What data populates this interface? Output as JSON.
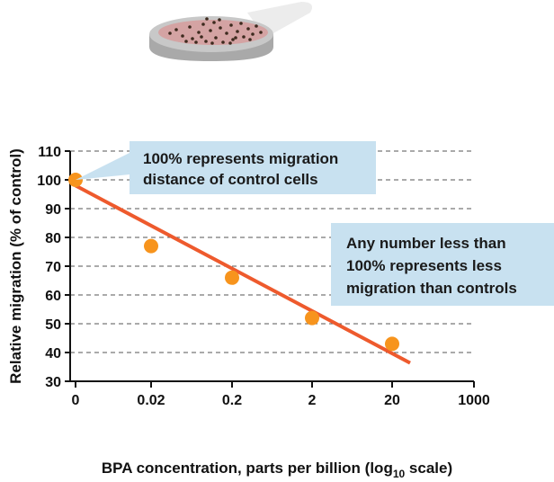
{
  "chart_data": {
    "type": "scatter",
    "x_scale": "log",
    "x_ticks": [
      "0",
      "0.02",
      "0.2",
      "2",
      "20",
      "1000"
    ],
    "y_ticks": [
      30,
      40,
      50,
      60,
      70,
      80,
      90,
      100,
      110
    ],
    "ylim": [
      30,
      110
    ],
    "grid": "dashed horizontal",
    "ylabel": "Relative migration (% of control)",
    "xlabel": "BPA concentration, parts per billion (log₁₀ scale)",
    "xlabel_parts": {
      "main": "BPA concentration, parts per billion (log",
      "subscript": "10",
      "tail": " scale)"
    },
    "points": [
      {
        "x": "0",
        "y": 100
      },
      {
        "x": "0.02",
        "y": 77
      },
      {
        "x": "0.2",
        "y": 66
      },
      {
        "x": "2",
        "y": 52
      },
      {
        "x": "20",
        "y": 43
      }
    ],
    "trend_line": {
      "from": {
        "x": "0",
        "y": 98
      },
      "to": {
        "x": "20",
        "y": 37
      }
    },
    "colors": {
      "point": "#F7941D",
      "trend": "#EE5A2D",
      "callout": "#C8E1F0",
      "grid": "#555555"
    },
    "annotations": [
      {
        "id": "control",
        "lines": [
          "100% represents migration",
          "distance of control cells"
        ]
      },
      {
        "id": "less",
        "lines": [
          "Any number less than",
          "100% represents less",
          "migration than controls"
        ]
      }
    ]
  }
}
